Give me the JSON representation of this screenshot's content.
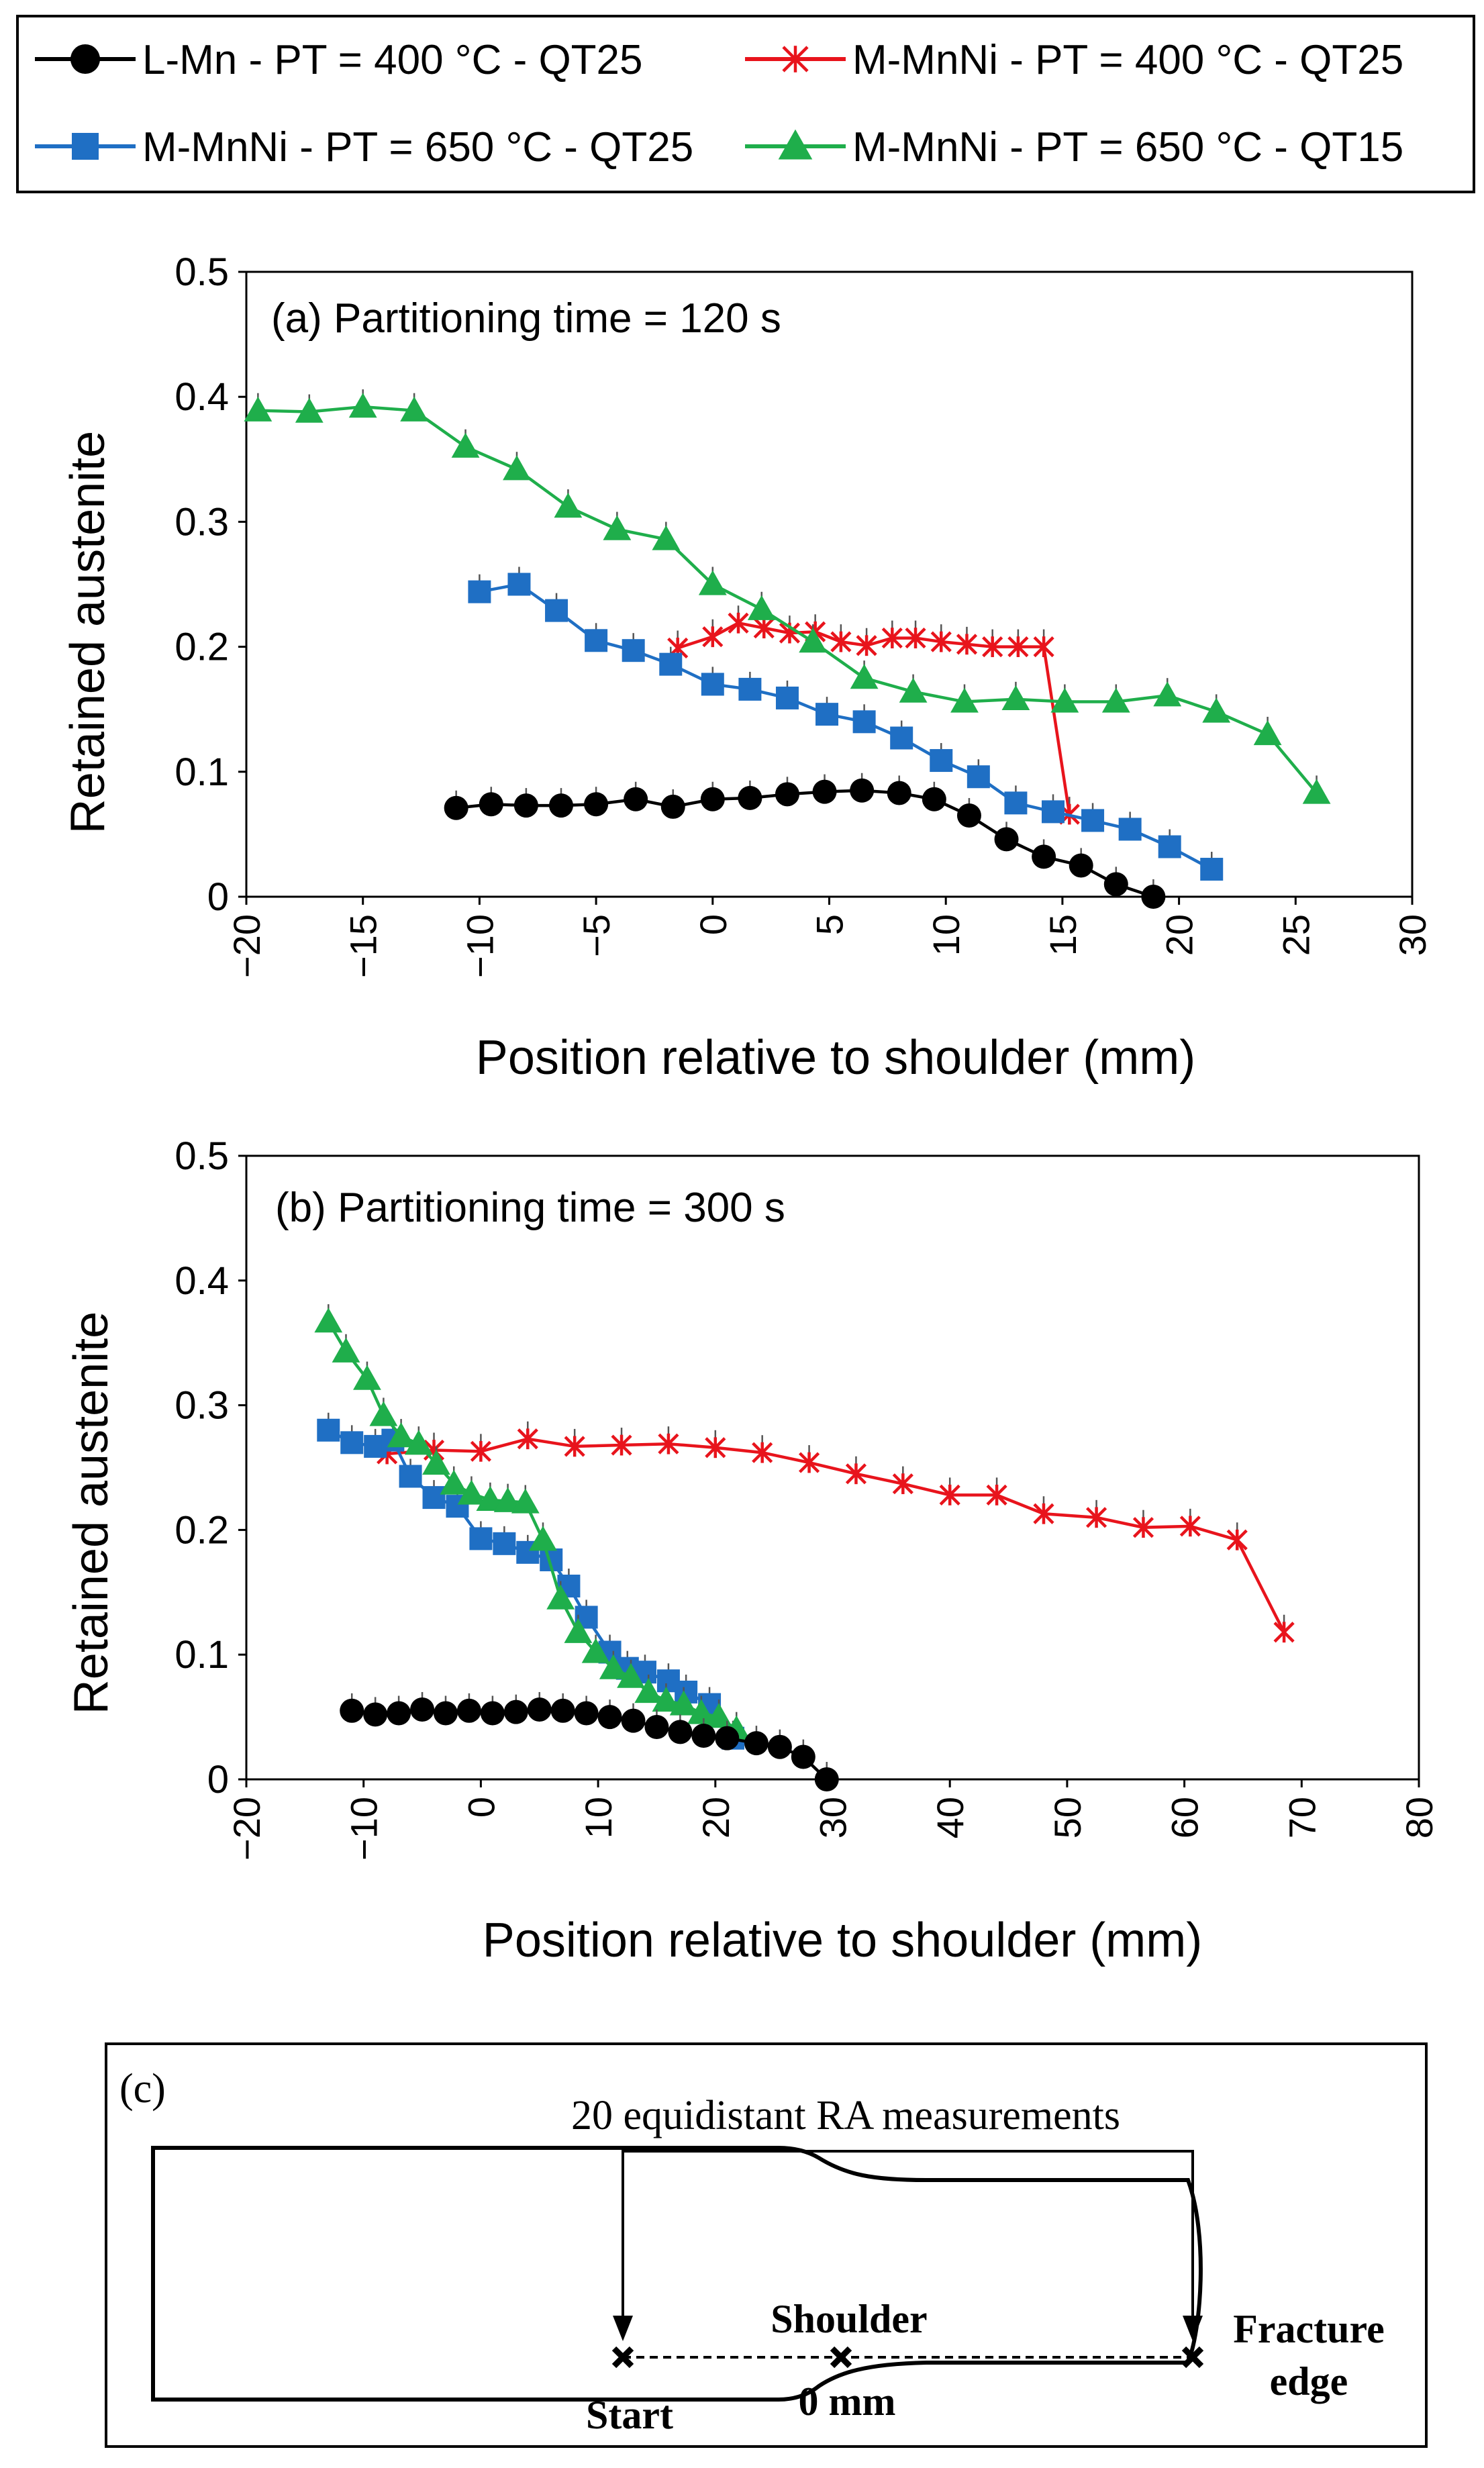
{
  "series_styles": [
    {
      "name": "L-Mn - PT = 400 °C - QT25",
      "color": "#000000",
      "marker": "circle"
    },
    {
      "name": "M-MnNi - PT = 400 °C - QT25",
      "color": "#e8141c",
      "marker": "star"
    },
    {
      "name": "M-MnNi - PT = 650 °C - QT25",
      "color": "#1f6fc4",
      "marker": "square"
    },
    {
      "name": "M-MnNi - PT = 650 °C - QT15",
      "color": "#1fae4b",
      "marker": "triangle"
    }
  ],
  "chart_data": [
    {
      "type": "line",
      "title": "(a) Partitioning time = 120 s",
      "xlabel": "Position relative to shoulder (mm)",
      "ylabel": "Retained austenite",
      "xlim": [
        -20,
        30
      ],
      "ylim": [
        0,
        0.5
      ],
      "xticks": [
        "−20",
        "−15",
        "−10",
        "−5",
        "0",
        "5",
        "10",
        "15",
        "20",
        "25",
        "30"
      ],
      "yticks": [
        "0",
        "0.1",
        "0.2",
        "0.3",
        "0.4",
        "0.5"
      ],
      "series": [
        {
          "name": "L-Mn - PT = 400 °C - QT25",
          "x": [
            -11,
            -9.5,
            -8,
            -6.5,
            -5,
            -3.3,
            -1.7,
            0,
            1.6,
            3.2,
            4.8,
            6.4,
            8,
            9.5,
            11,
            12.6,
            14.2,
            15.8,
            17.3,
            18.9
          ],
          "y": [
            0.071,
            0.074,
            0.073,
            0.073,
            0.074,
            0.078,
            0.072,
            0.078,
            0.079,
            0.082,
            0.084,
            0.085,
            0.083,
            0.078,
            0.065,
            0.046,
            0.032,
            0.025,
            0.01,
            0.0
          ]
        },
        {
          "name": "M-MnNi - PT = 400 °C - QT25",
          "x": [
            -1.5,
            0,
            1.1,
            2.2,
            3.3,
            4.4,
            5.5,
            6.6,
            7.7,
            8.7,
            9.8,
            10.9,
            12,
            13.1,
            14.2,
            15.3
          ],
          "y": [
            0.199,
            0.208,
            0.219,
            0.215,
            0.211,
            0.212,
            0.204,
            0.201,
            0.207,
            0.207,
            0.204,
            0.202,
            0.2,
            0.2,
            0.2,
            0.066
          ]
        },
        {
          "name": "M-MnNi - PT = 650 °C - QT25",
          "x": [
            -10,
            -8.3,
            -6.7,
            -5,
            -3.4,
            -1.8,
            0,
            1.6,
            3.2,
            4.9,
            6.5,
            8.1,
            9.8,
            11.4,
            13,
            14.6,
            16.3,
            17.9,
            19.6,
            21.4
          ],
          "y": [
            0.244,
            0.25,
            0.229,
            0.205,
            0.197,
            0.186,
            0.17,
            0.166,
            0.159,
            0.146,
            0.14,
            0.127,
            0.109,
            0.096,
            0.075,
            0.068,
            0.061,
            0.054,
            0.04,
            0.022
          ]
        },
        {
          "name": "M-MnNi - PT = 650 °C - QT15",
          "x": [
            -19.5,
            -17.3,
            -15,
            -12.8,
            -10.6,
            -8.4,
            -6.2,
            -4.1,
            -2,
            0,
            2.1,
            4.3,
            6.5,
            8.6,
            10.8,
            13,
            15.1,
            17.3,
            19.5,
            21.6,
            23.8,
            25.9
          ],
          "y": [
            0.389,
            0.388,
            0.392,
            0.389,
            0.36,
            0.342,
            0.312,
            0.294,
            0.286,
            0.25,
            0.23,
            0.204,
            0.175,
            0.164,
            0.156,
            0.158,
            0.156,
            0.156,
            0.161,
            0.148,
            0.13,
            0.083
          ]
        }
      ]
    },
    {
      "type": "line",
      "title": "(b) Partitioning time = 300 s",
      "xlabel": "Position relative to shoulder (mm)",
      "ylabel": "Retained austenite",
      "xlim": [
        -20,
        80
      ],
      "ylim": [
        0,
        0.5
      ],
      "xticks": [
        "−20",
        "−10",
        "0",
        "10",
        "20",
        "30",
        "40",
        "50",
        "60",
        "70",
        "80"
      ],
      "yticks": [
        "0",
        "0.1",
        "0.2",
        "0.3",
        "0.4",
        "0.5"
      ],
      "series": [
        {
          "name": "L-Mn - PT = 400 °C - QT25",
          "x": [
            -11,
            -9,
            -7,
            -5,
            -3,
            -1,
            1,
            3,
            5,
            7,
            9,
            11,
            13,
            15,
            17,
            19,
            21,
            23.5,
            25.5,
            27.5,
            29.5
          ],
          "y": [
            0.055,
            0.052,
            0.053,
            0.056,
            0.053,
            0.055,
            0.053,
            0.054,
            0.056,
            0.055,
            0.053,
            0.05,
            0.047,
            0.042,
            0.038,
            0.035,
            0.033,
            0.029,
            0.026,
            0.018,
            0.0
          ]
        },
        {
          "name": "M-MnNi - PT = 400 °C - QT25",
          "x": [
            -8,
            -4,
            0,
            4,
            8,
            12,
            16,
            20,
            24,
            28,
            32,
            36,
            40,
            44,
            48,
            52.5,
            56.5,
            60.5,
            64.5,
            68.5
          ],
          "y": [
            0.261,
            0.264,
            0.263,
            0.273,
            0.267,
            0.268,
            0.269,
            0.266,
            0.262,
            0.254,
            0.245,
            0.237,
            0.228,
            0.228,
            0.213,
            0.21,
            0.202,
            0.203,
            0.192,
            0.118
          ]
        },
        {
          "name": "M-MnNi - PT = 650 °C - QT25",
          "x": [
            -13,
            -11,
            -9,
            -7.5,
            -6,
            -4,
            -2,
            0,
            2,
            4,
            6,
            7.5,
            9,
            11,
            12.5,
            14,
            16,
            17.5,
            19.5,
            21.5
          ],
          "y": [
            0.28,
            0.27,
            0.267,
            0.272,
            0.243,
            0.226,
            0.219,
            0.193,
            0.189,
            0.182,
            0.176,
            0.155,
            0.13,
            0.102,
            0.089,
            0.086,
            0.079,
            0.07,
            0.06,
            0.033
          ]
        },
        {
          "name": "M-MnNi - PT = 650 °C - QT15",
          "x": [
            -13,
            -11.5,
            -9.7,
            -8.3,
            -6.8,
            -5.3,
            -3.8,
            -2.3,
            -0.8,
            0.8,
            2.3,
            3.8,
            5.3,
            6.8,
            8.3,
            9.8,
            11.3,
            12.8,
            14.3,
            15.8,
            17.3,
            18.8,
            20.3,
            21.8
          ],
          "y": [
            0.367,
            0.343,
            0.321,
            0.292,
            0.275,
            0.269,
            0.253,
            0.237,
            0.229,
            0.224,
            0.223,
            0.222,
            0.192,
            0.145,
            0.118,
            0.102,
            0.089,
            0.082,
            0.07,
            0.063,
            0.06,
            0.053,
            0.05,
            0.04
          ]
        }
      ]
    }
  ],
  "diagram": {
    "label": "(c)",
    "caption": "20 equidistant RA measurements",
    "shoulder": "Shoulder",
    "zero": "0 mm",
    "start": "Start",
    "fracture_line1": "Fracture",
    "fracture_line2": "edge"
  }
}
